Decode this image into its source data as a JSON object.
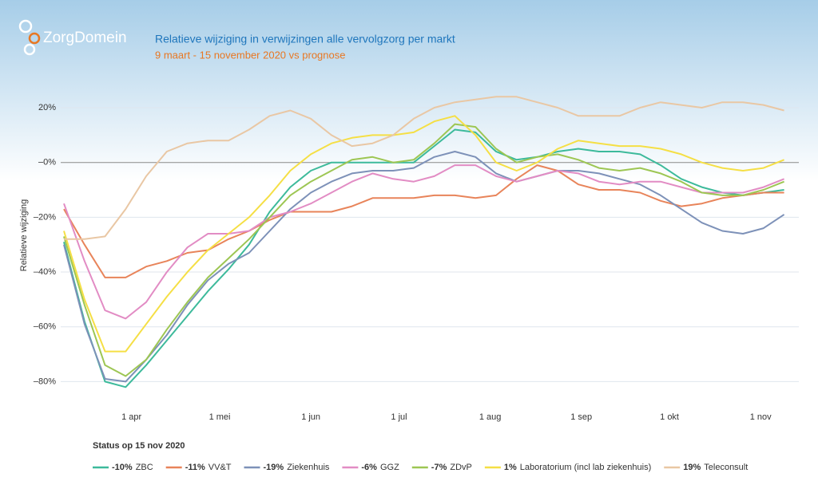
{
  "logo": "ZorgDomein",
  "chart_data": {
    "type": "line",
    "title": "Relatieve wijziging in verwijzingen alle vervolgzorg per markt",
    "subtitle": "9 maart - 15 november 2020 vs prognose",
    "y_label": "Relatieve wijziging",
    "legend_title": "Status op 15 nov 2020",
    "x": [
      0,
      7,
      14,
      21,
      28,
      35,
      42,
      49,
      56,
      63,
      70,
      77,
      84,
      91,
      98,
      105,
      112,
      119,
      126,
      133,
      140,
      147,
      154,
      161,
      168,
      175,
      182,
      189,
      196,
      203,
      210,
      217,
      224,
      231,
      238,
      245
    ],
    "xlim": [
      0,
      250
    ],
    "xticks": [
      {
        "value": 23,
        "label": "1 apr"
      },
      {
        "value": 53,
        "label": "1 mei"
      },
      {
        "value": 84,
        "label": "1 jun"
      },
      {
        "value": 114,
        "label": "1 jul"
      },
      {
        "value": 145,
        "label": "1 aug"
      },
      {
        "value": 176,
        "label": "1 sep"
      },
      {
        "value": 206,
        "label": "1 okt"
      },
      {
        "value": 237,
        "label": "1 nov"
      }
    ],
    "ylim": [
      -86,
      27
    ],
    "yticks": [
      {
        "value": 20,
        "label": "20%"
      },
      {
        "value": 0,
        "label": "–0%"
      },
      {
        "value": -20,
        "label": "–20%"
      },
      {
        "value": -40,
        "label": "–40%"
      },
      {
        "value": -60,
        "label": "–60%"
      },
      {
        "value": -80,
        "label": "–80%"
      }
    ],
    "grid": true,
    "series": [
      {
        "name": "ZBC",
        "change": "-10%",
        "color": "#3dba9b",
        "values": [
          -29,
          -58,
          -80,
          -82,
          -74,
          -65,
          -56,
          -47,
          -39,
          -30,
          -18,
          -9,
          -3,
          0,
          0,
          0,
          0,
          0,
          6,
          12,
          11,
          4,
          1,
          2,
          4,
          5,
          4,
          4,
          3,
          -1,
          -6,
          -9,
          -11,
          -12,
          -11,
          -10
        ]
      },
      {
        "name": "VV&T",
        "change": "-11%",
        "color": "#e8845a",
        "values": [
          -17,
          -30,
          -42,
          -42,
          -38,
          -36,
          -33,
          -32,
          -28,
          -25,
          -21,
          -18,
          -18,
          -18,
          -16,
          -13,
          -13,
          -13,
          -12,
          -12,
          -13,
          -12,
          -6,
          -1,
          -3,
          -8,
          -10,
          -10,
          -11,
          -14,
          -16,
          -15,
          -13,
          -12,
          -11,
          -11
        ]
      },
      {
        "name": "Ziekenhuis",
        "change": "-19%",
        "color": "#7d91b8",
        "values": [
          -30,
          -59,
          -79,
          -80,
          -72,
          -63,
          -52,
          -43,
          -37,
          -33,
          -25,
          -17,
          -11,
          -7,
          -4,
          -3,
          -3,
          -2,
          2,
          4,
          2,
          -4,
          -7,
          -5,
          -3,
          -3,
          -4,
          -6,
          -8,
          -12,
          -17,
          -22,
          -25,
          -26,
          -24,
          -19
        ]
      },
      {
        "name": "GGZ",
        "change": "-6%",
        "color": "#e28cc4",
        "values": [
          -15,
          -36,
          -54,
          -57,
          -51,
          -40,
          -31,
          -26,
          -26,
          -25,
          -20,
          -18,
          -15,
          -11,
          -7,
          -4,
          -6,
          -7,
          -5,
          -1,
          -1,
          -5,
          -7,
          -5,
          -3,
          -4,
          -7,
          -8,
          -7,
          -7,
          -9,
          -11,
          -11,
          -11,
          -9,
          -6
        ]
      },
      {
        "name": "ZDvP",
        "change": "-7%",
        "color": "#9dc653",
        "values": [
          -27,
          -52,
          -74,
          -78,
          -72,
          -61,
          -51,
          -42,
          -35,
          -28,
          -20,
          -12,
          -7,
          -3,
          1,
          2,
          0,
          1,
          7,
          14,
          13,
          5,
          0,
          2,
          3,
          1,
          -2,
          -3,
          -2,
          -4,
          -7,
          -11,
          -12,
          -12,
          -10,
          -7
        ]
      },
      {
        "name": "Laboratorium (incl lab ziekenhuis)",
        "change": "1%",
        "color": "#f5df45",
        "values": [
          -25,
          -50,
          -69,
          -69,
          -59,
          -49,
          -40,
          -32,
          -26,
          -20,
          -12,
          -3,
          3,
          7,
          9,
          10,
          10,
          11,
          15,
          17,
          10,
          0,
          -3,
          0,
          5,
          8,
          7,
          6,
          6,
          5,
          3,
          0,
          -2,
          -3,
          -2,
          1
        ]
      },
      {
        "name": "Teleconsult",
        "change": "19%",
        "color": "#e9c7a4",
        "values": [
          -28,
          -28,
          -27,
          -17,
          -5,
          4,
          7,
          8,
          8,
          12,
          17,
          19,
          16,
          10,
          6,
          7,
          10,
          16,
          20,
          22,
          23,
          24,
          24,
          22,
          20,
          17,
          17,
          17,
          20,
          22,
          21,
          20,
          22,
          22,
          21,
          19
        ]
      }
    ]
  }
}
